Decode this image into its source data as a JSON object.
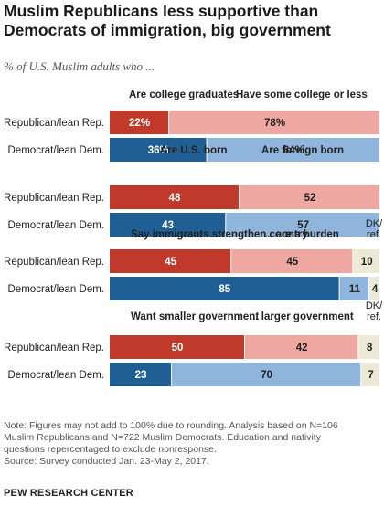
{
  "title": "Muslim Republicans less supportive than Democrats of immigration, big government",
  "subtitle": "% of U.S. Muslim adults who ...",
  "colors": {
    "rep_dark": "#c0392b",
    "rep_light": "#eea7a1",
    "dem_dark": "#1f5f95",
    "dem_light": "#8fb5dc",
    "ref": "#ece9d6"
  },
  "chart_data": [
    {
      "type": "bar",
      "stacked": true,
      "orientation": "horizontal",
      "categories": [
        "Republican/lean Rep.",
        "Democrat/lean Dem."
      ],
      "series": [
        {
          "name": "Are college graduates",
          "values": [
            22,
            36
          ]
        },
        {
          "name": "Have some college or less",
          "values": [
            78,
            64
          ]
        }
      ]
    },
    {
      "type": "bar",
      "stacked": true,
      "orientation": "horizontal",
      "categories": [
        "Republican/lean Rep.",
        "Democrat/lean Dem."
      ],
      "series": [
        {
          "name": "Are U.S. born",
          "values": [
            48,
            43
          ]
        },
        {
          "name": "Are foreign born",
          "values": [
            52,
            57
          ]
        }
      ]
    },
    {
      "type": "bar",
      "stacked": true,
      "orientation": "horizontal",
      "categories": [
        "Republican/lean Rep.",
        "Democrat/lean Dem."
      ],
      "series": [
        {
          "name": "Say immigrants strengthen country",
          "values": [
            45,
            85
          ]
        },
        {
          "name": "... are a burden",
          "values": [
            45,
            11
          ]
        },
        {
          "name": "DK/ ref.",
          "values": [
            10,
            4
          ]
        }
      ]
    },
    {
      "type": "bar",
      "stacked": true,
      "orientation": "horizontal",
      "categories": [
        "Republican/lean Rep.",
        "Democrat/lean Dem."
      ],
      "series": [
        {
          "name": "Want smaller government",
          "values": [
            50,
            23
          ]
        },
        {
          "name": "... larger government",
          "values": [
            42,
            70
          ]
        },
        {
          "name": "DK/ ref.",
          "values": [
            8,
            7
          ]
        }
      ]
    }
  ],
  "notes": [
    "Note: Figures may not add to 100% due to rounding. Analysis based on N=106",
    "Muslim Republicans and N=722 Muslim Democrats. Education and nativity",
    "questions repercentaged to exclude nonresponse.",
    "Source: Survey conducted Jan. 23-May 2, 2017."
  ],
  "source_org": "PEW RESEARCH CENTER"
}
